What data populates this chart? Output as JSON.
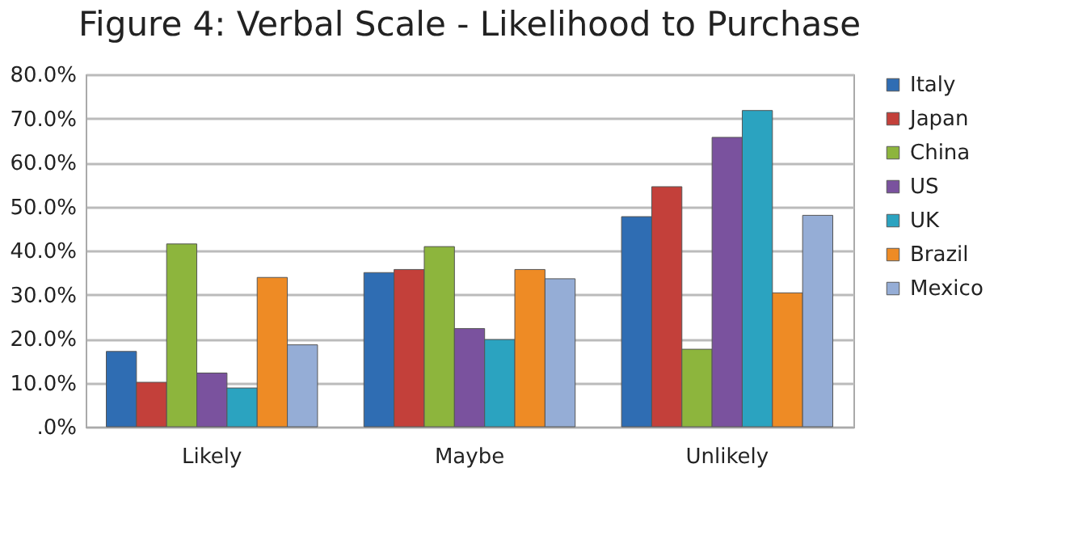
{
  "chart_data": {
    "type": "bar",
    "title": "Figure 4: Verbal Scale - Likelihood to Purchase",
    "categories": [
      "Likely",
      "Maybe",
      "Unlikely"
    ],
    "series": [
      {
        "name": "Italy",
        "color": "#2f6db3",
        "values": [
          17.1,
          35.0,
          47.7
        ]
      },
      {
        "name": "Japan",
        "color": "#c3403a",
        "values": [
          10.1,
          35.7,
          54.5
        ]
      },
      {
        "name": "China",
        "color": "#8db53d",
        "values": [
          41.5,
          40.9,
          17.6
        ]
      },
      {
        "name": "US",
        "color": "#7a529e",
        "values": [
          12.2,
          22.3,
          65.7
        ]
      },
      {
        "name": "UK",
        "color": "#2ba3c0",
        "values": [
          8.8,
          19.8,
          71.8
        ]
      },
      {
        "name": "Brazil",
        "color": "#ee8b25",
        "values": [
          33.9,
          35.7,
          30.4
        ]
      },
      {
        "name": "Mexico",
        "color": "#95add6",
        "values": [
          18.6,
          33.6,
          48.0
        ]
      }
    ],
    "ylim": [
      0,
      80
    ],
    "yticks": [
      {
        "value": 0,
        "label": ".0%"
      },
      {
        "value": 10,
        "label": "10.0%"
      },
      {
        "value": 20,
        "label": "20.0%"
      },
      {
        "value": 30,
        "label": "30.0%"
      },
      {
        "value": 40,
        "label": "40.0%"
      },
      {
        "value": 50,
        "label": "50.0%"
      },
      {
        "value": 60,
        "label": "60.0%"
      },
      {
        "value": 70,
        "label": "70.0%"
      },
      {
        "value": 80,
        "label": "80.0%"
      }
    ],
    "grid": "y",
    "legend": "right"
  }
}
